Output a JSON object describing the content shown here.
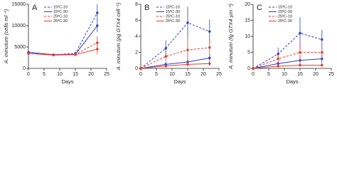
{
  "chart_data": [
    {
      "type": "line",
      "label": "A",
      "ylabel": "A. minutum (cells ml⁻¹)",
      "xlabel": "Days",
      "x": [
        0,
        8,
        15,
        22
      ],
      "xlim": [
        0,
        25
      ],
      "xticks": [
        0,
        5,
        10,
        15,
        20,
        25
      ],
      "ylim": [
        0,
        15000
      ],
      "yticks": [
        0,
        5000,
        10000,
        15000
      ],
      "legend": "upper left",
      "series": [
        {
          "name": "15ºC-10",
          "color": "#2b3fc4",
          "dash": true,
          "values": [
            3500,
            3200,
            3500,
            13000
          ],
          "errors": [
            400,
            300,
            400,
            2000
          ]
        },
        {
          "name": "15ºC-30",
          "color": "#2b3fc4",
          "dash": false,
          "values": [
            3800,
            3200,
            3300,
            10000
          ],
          "errors": [
            400,
            300,
            300,
            1500
          ]
        },
        {
          "name": "25ºC-10",
          "color": "#e8392e",
          "dash": true,
          "values": [
            3500,
            3200,
            3300,
            6000
          ],
          "errors": [
            400,
            300,
            300,
            1500
          ]
        },
        {
          "name": "25ºC-30",
          "color": "#e8392e",
          "dash": false,
          "values": [
            3500,
            3100,
            3200,
            4500
          ],
          "errors": [
            300,
            300,
            300,
            1200
          ]
        }
      ]
    },
    {
      "type": "line",
      "label": "B",
      "ylabel": "A. minutum (pg GTX4 cell⁻¹)",
      "xlabel": "Days",
      "x": [
        0,
        8,
        15,
        22
      ],
      "xlim": [
        0,
        25
      ],
      "xticks": [
        0,
        5,
        10,
        15,
        20,
        25
      ],
      "ylim": [
        0,
        8
      ],
      "yticks": [
        0,
        2,
        4,
        6,
        8
      ],
      "legend": "upper left",
      "series": [
        {
          "name": "15ºC-10",
          "color": "#2b3fc4",
          "dash": true,
          "values": [
            0,
            2.5,
            5.7,
            4.6
          ],
          "errors": [
            0,
            1,
            2,
            1.5
          ]
        },
        {
          "name": "15ºC-30",
          "color": "#2b3fc4",
          "dash": false,
          "values": [
            0,
            0.5,
            0.8,
            1.3
          ],
          "errors": [
            0,
            0.3,
            0.4,
            0.5
          ]
        },
        {
          "name": "25ºC-10",
          "color": "#e8392e",
          "dash": true,
          "values": [
            0,
            1.5,
            2.3,
            2.6
          ],
          "errors": [
            0,
            0.6,
            1.5,
            1
          ]
        },
        {
          "name": "25ºC-30",
          "color": "#e8392e",
          "dash": false,
          "values": [
            0,
            0.3,
            0.5,
            0.6
          ],
          "errors": [
            0,
            0.2,
            0.3,
            0.3
          ]
        }
      ]
    },
    {
      "type": "line",
      "label": "C",
      "ylabel": "A. minutum (fg GTX4 µm⁻³)",
      "xlabel": "Days",
      "x": [
        0,
        8,
        15,
        22
      ],
      "xlim": [
        0,
        25
      ],
      "xticks": [
        0,
        5,
        10,
        15,
        20,
        25
      ],
      "ylim": [
        0,
        20
      ],
      "yticks": [
        0,
        5,
        10,
        15,
        20
      ],
      "legend": "upper left",
      "series": [
        {
          "name": "15ºC-10",
          "color": "#2b3fc4",
          "dash": true,
          "values": [
            0,
            4.5,
            11,
            9
          ],
          "errors": [
            0,
            2,
            5,
            3
          ]
        },
        {
          "name": "15ºC-30",
          "color": "#2b3fc4",
          "dash": false,
          "values": [
            0,
            1.5,
            2.5,
            3
          ],
          "errors": [
            0,
            0.8,
            1.2,
            1.5
          ]
        },
        {
          "name": "25ºC-10",
          "color": "#e8392e",
          "dash": true,
          "values": [
            0,
            3,
            5,
            5
          ],
          "errors": [
            0,
            1.5,
            3,
            2
          ]
        },
        {
          "name": "25ºC-30",
          "color": "#e8392e",
          "dash": false,
          "values": [
            0,
            0.7,
            1,
            1
          ],
          "errors": [
            0,
            0.4,
            0.5,
            0.5
          ]
        }
      ]
    }
  ]
}
